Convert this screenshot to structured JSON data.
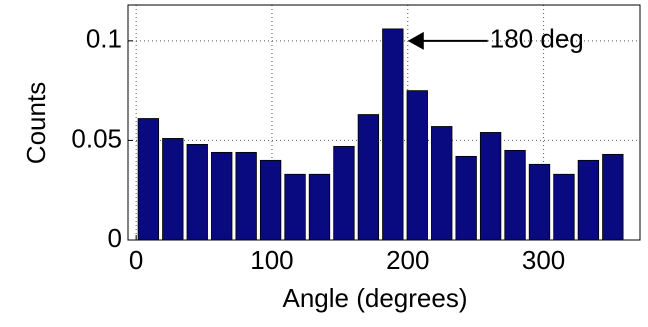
{
  "chart_data": {
    "type": "histogram",
    "bins": [
      0,
      18,
      36,
      54,
      72,
      90,
      108,
      126,
      144,
      162,
      180,
      198,
      216,
      234,
      252,
      270,
      288,
      306,
      324,
      342,
      360
    ],
    "values": [
      0.061,
      0.051,
      0.048,
      0.044,
      0.044,
      0.04,
      0.033,
      0.033,
      0.047,
      0.063,
      0.106,
      0.075,
      0.057,
      0.042,
      0.054,
      0.045,
      0.038,
      0.033,
      0.04,
      0.043
    ],
    "color": "#0a0a80",
    "xlabel": "Angle (degrees)",
    "ylabel": "Counts",
    "xlim": [
      -6,
      371
    ],
    "ylim": [
      0,
      0.118
    ],
    "xticks": [
      0,
      100,
      200,
      300
    ],
    "yticks": [
      0,
      0.05,
      0.1
    ],
    "grid": true,
    "annotation": {
      "text": "180 deg",
      "x": 200,
      "y": 0.1
    }
  }
}
